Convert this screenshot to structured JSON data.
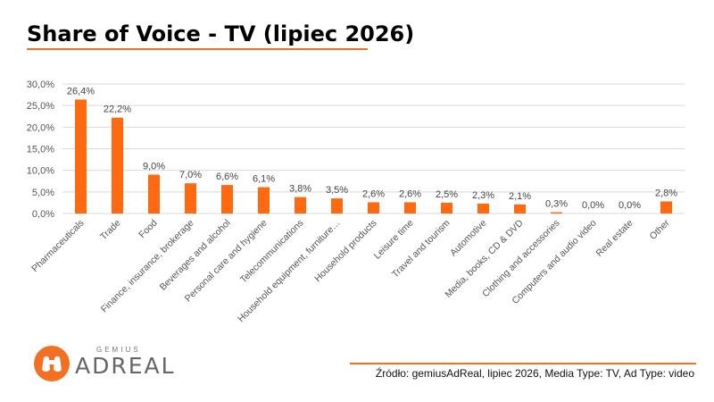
{
  "title": "Share of Voice - TV (lipiec 2026)",
  "source": "Źródło: gemiusAdReal, lipiec 2026, Media Type: TV, Ad Type: video",
  "logo": {
    "brand_small": "GEMIUS",
    "brand_big": "ADREAL"
  },
  "colors": {
    "accent": "#f36f21",
    "bar": "#ff6a10",
    "grid": "#d9d9d9"
  },
  "chart_data": {
    "type": "bar",
    "categories": [
      "Pharmaceuticals",
      "Trade",
      "Food",
      "Finance, insurance, brokerage",
      "Beverages and alcohol",
      "Personal care and hygiene",
      "Telecommunications",
      "Household equipment, furniture…",
      "Household products",
      "Leisure time",
      "Travel and tourism",
      "Automotive",
      "Media, books, CD & DVD",
      "Clothing and accessories",
      "Computers and audio video",
      "Real estate",
      "Other"
    ],
    "values": [
      26.4,
      22.2,
      9.0,
      7.0,
      6.6,
      6.1,
      3.8,
      3.5,
      2.6,
      2.6,
      2.5,
      2.3,
      2.1,
      0.3,
      0.0,
      0.0,
      2.8
    ],
    "value_labels": [
      "26,4%",
      "22,2%",
      "9,0%",
      "7,0%",
      "6,6%",
      "6,1%",
      "3,8%",
      "3,5%",
      "2,6%",
      "2,6%",
      "2,5%",
      "2,3%",
      "2,1%",
      "0,3%",
      "0,0%",
      "0,0%",
      "2,8%"
    ],
    "ylim": [
      0,
      30
    ],
    "yticks": [
      "0,0%",
      "5,0%",
      "10,0%",
      "15,0%",
      "20,0%",
      "25,0%",
      "30,0%"
    ],
    "grid": true
  }
}
